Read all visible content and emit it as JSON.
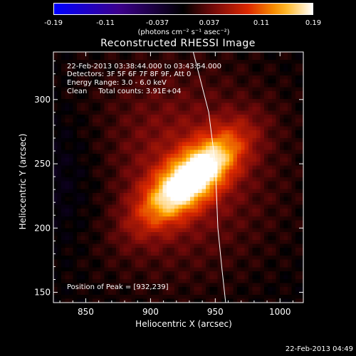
{
  "colorbar": {
    "ticks": [
      "-0.19",
      "-0.11",
      "-0.037",
      "0.037",
      "0.11",
      "0.19"
    ],
    "units": "(photons cm⁻² s⁻¹ asec⁻²)"
  },
  "chart_data": {
    "type": "heatmap",
    "title": "Reconstructed RHESSI Image",
    "xlabel": "Heliocentric X (arcsec)",
    "ylabel": "Heliocentric Y (arcsec)",
    "xlim": [
      825,
      1018
    ],
    "ylim": [
      142,
      337
    ],
    "xticks": [
      850,
      900,
      950,
      1000
    ],
    "yticks": [
      150,
      200,
      250,
      300
    ],
    "color_range": [
      -0.19,
      0.19
    ],
    "colormap": "blue-purple-red-yellow-white",
    "peak": [
      932,
      239
    ],
    "limb_curve": [
      [
        933,
        337
      ],
      [
        945,
        290
      ],
      [
        950,
        250
      ],
      [
        952,
        200
      ],
      [
        955,
        170
      ],
      [
        958,
        142
      ]
    ]
  },
  "info": {
    "time_range": "22-Feb-2013 03:38:44.000 to 03:43:54.000",
    "detectors": "Detectors: 3F 5F 6F 7F 8F 9F, Att 0",
    "energy": "Energy Range: 3.0 - 6.0 keV",
    "clean": "Clean     Total counts: 3.91E+04",
    "peak_text": "Position of Peak = [932,239]"
  },
  "footer": "22-Feb-2013 04:49"
}
